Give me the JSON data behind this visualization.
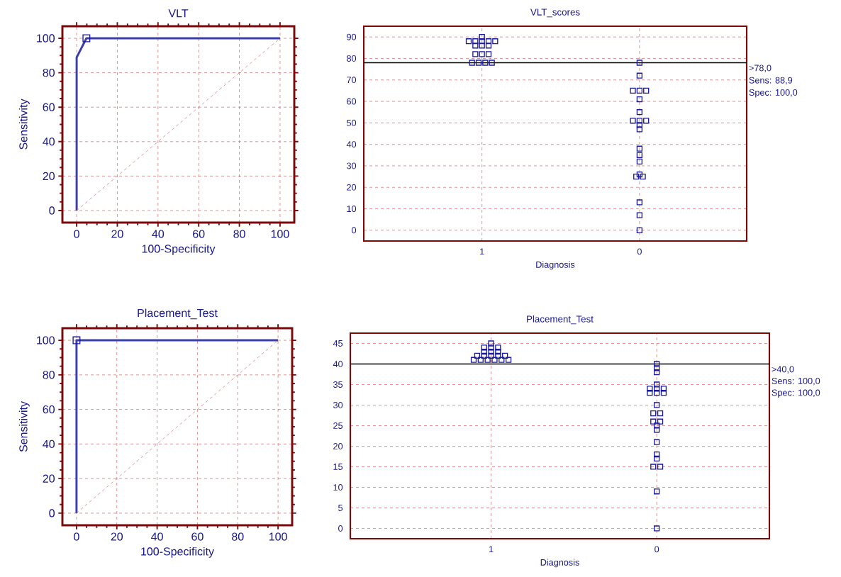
{
  "chart_data": [
    {
      "type": "line",
      "title": "VLT",
      "xlabel": "100-Specificity",
      "ylabel": "Sensitivity",
      "xlim": [
        -7,
        107
      ],
      "ylim": [
        -7,
        107
      ],
      "xticks": [
        0,
        20,
        40,
        60,
        80,
        100
      ],
      "yticks": [
        0,
        20,
        40,
        60,
        80,
        100
      ],
      "grid": true,
      "series": [
        {
          "x": [
            0,
            0,
            4.8,
            100
          ],
          "values": [
            0,
            88.9,
            100,
            100
          ],
          "color": "#3b3fa8",
          "line_style": "solid"
        },
        {
          "type": "scatter",
          "x": [
            4.8
          ],
          "values": [
            100
          ],
          "marker": "square",
          "color": "#1a1a9a"
        },
        {
          "x": [
            0,
            100
          ],
          "values": [
            0,
            100
          ],
          "color": "#d08080",
          "line_style": "dashed"
        }
      ]
    },
    {
      "type": "scatter",
      "title": "VLT_scores",
      "xlabel": "Diagnosis",
      "categories": [
        "1",
        "0"
      ],
      "ylim": [
        -5,
        95
      ],
      "yticks": [
        0,
        10,
        20,
        30,
        40,
        50,
        60,
        70,
        80,
        90
      ],
      "grid": true,
      "marker": "square",
      "series": [
        {
          "x": [
            "1",
            "1",
            "1",
            "1",
            "1",
            "1",
            "1",
            "1",
            "1",
            "1",
            "1",
            "1",
            "1",
            "1",
            "1",
            "1",
            "0",
            "0",
            "0",
            "0",
            "0",
            "0",
            "0",
            "0",
            "0",
            "0",
            "0",
            "0",
            "0",
            "0",
            "0",
            "0",
            "0",
            "0",
            "0",
            "0",
            "0"
          ],
          "values": [
            90,
            88,
            88,
            88,
            88,
            88,
            86,
            86,
            86,
            82,
            82,
            82,
            78,
            78,
            78,
            78,
            78,
            72,
            65,
            65,
            65,
            61,
            55,
            51,
            51,
            51,
            49,
            47,
            38,
            35,
            32,
            26,
            25,
            25,
            13,
            7,
            0
          ],
          "color": "#1a1a9a"
        }
      ],
      "ref_lines": [
        {
          "axis": "y",
          "value": 78,
          "label": ">78,0",
          "color": "#000000"
        }
      ],
      "annotations": [
        "Sens: 88,9",
        "Spec: 100,0"
      ]
    },
    {
      "type": "line",
      "title": "Placement_Test",
      "xlabel": "100-Specificity",
      "ylabel": "Sensitivity",
      "xlim": [
        -7,
        107
      ],
      "ylim": [
        -7,
        107
      ],
      "xticks": [
        0,
        20,
        40,
        60,
        80,
        100
      ],
      "yticks": [
        0,
        20,
        40,
        60,
        80,
        100
      ],
      "grid": true,
      "series": [
        {
          "x": [
            0,
            0,
            100
          ],
          "values": [
            0,
            100,
            100
          ],
          "color": "#3b3fa8",
          "line_style": "solid"
        },
        {
          "type": "scatter",
          "x": [
            0
          ],
          "values": [
            100
          ],
          "marker": "square",
          "color": "#1a1a9a"
        },
        {
          "x": [
            0,
            100
          ],
          "values": [
            0,
            100
          ],
          "color": "#d08080",
          "line_style": "dashed"
        }
      ]
    },
    {
      "type": "scatter",
      "title": "Placement_Test",
      "xlabel": "Diagnosis",
      "categories": [
        "1",
        "0"
      ],
      "ylim": [
        -2.5,
        47.5
      ],
      "yticks": [
        0,
        5,
        10,
        15,
        20,
        25,
        30,
        35,
        40,
        45
      ],
      "grid": true,
      "marker": "square",
      "series": [
        {
          "x": [
            "1",
            "1",
            "1",
            "1",
            "1",
            "1",
            "1",
            "1",
            "1",
            "1",
            "1",
            "1",
            "1",
            "1",
            "1",
            "1",
            "1",
            "1",
            "0",
            "0",
            "0",
            "0",
            "0",
            "0",
            "0",
            "0",
            "0",
            "0",
            "0",
            "0",
            "0",
            "0",
            "0",
            "0",
            "0",
            "0",
            "0",
            "0",
            "0",
            "0",
            "0",
            "0"
          ],
          "values": [
            45,
            44,
            44,
            44,
            43,
            43,
            43,
            42,
            42,
            42,
            42,
            42,
            41,
            41,
            41,
            41,
            41,
            41,
            40,
            39,
            38,
            35,
            34,
            34,
            34,
            33,
            33,
            33,
            30,
            28,
            28,
            26,
            26,
            25,
            24,
            21,
            18,
            17,
            15,
            15,
            9,
            0
          ],
          "color": "#1a1a9a"
        }
      ],
      "ref_lines": [
        {
          "axis": "y",
          "value": 40,
          "label": ">40,0",
          "color": "#000000"
        }
      ],
      "annotations": [
        "Sens: 100,0",
        "Spec: 100,0"
      ]
    }
  ]
}
